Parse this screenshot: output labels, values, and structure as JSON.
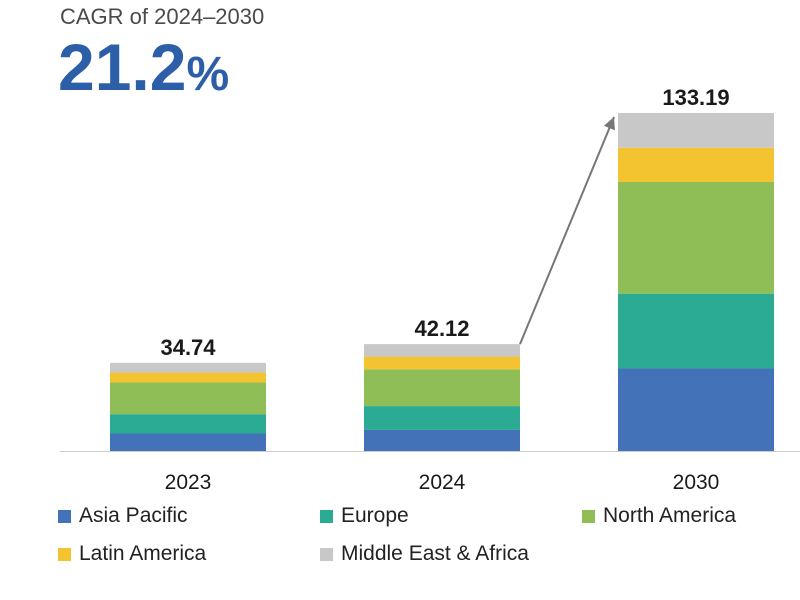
{
  "header": {
    "cagr_label": "CAGR of 2024–2030",
    "cagr_number": "21.2",
    "cagr_unit": "%"
  },
  "chart_data": {
    "type": "bar",
    "stacked": true,
    "categories": [
      "2023",
      "2024",
      "2030"
    ],
    "totals": [
      34.74,
      42.12,
      133.19
    ],
    "total_labels": [
      "34.74",
      "42.12",
      "133.19"
    ],
    "series": [
      {
        "name": "Asia Pacific",
        "color": "#4472b8",
        "values": [
          6.9,
          8.3,
          32.5
        ]
      },
      {
        "name": "Europe",
        "color": "#2bab93",
        "values": [
          7.6,
          9.4,
          29.5
        ]
      },
      {
        "name": "North America",
        "color": "#8fbd56",
        "values": [
          12.5,
          14.5,
          44.0
        ]
      },
      {
        "name": "Latin America",
        "color": "#f4c430",
        "values": [
          3.9,
          5.0,
          13.5
        ]
      },
      {
        "name": "Middle East & Africa",
        "color": "#c8c8c8",
        "values": [
          3.84,
          4.92,
          13.69
        ]
      }
    ],
    "ylim": [
      0,
      133.19
    ],
    "grid": false,
    "legend_position": "bottom",
    "annotation": {
      "type": "arrow",
      "from_category": "2024",
      "to_category": "2030",
      "color": "#777777"
    },
    "axis_color": "#cccccc"
  }
}
